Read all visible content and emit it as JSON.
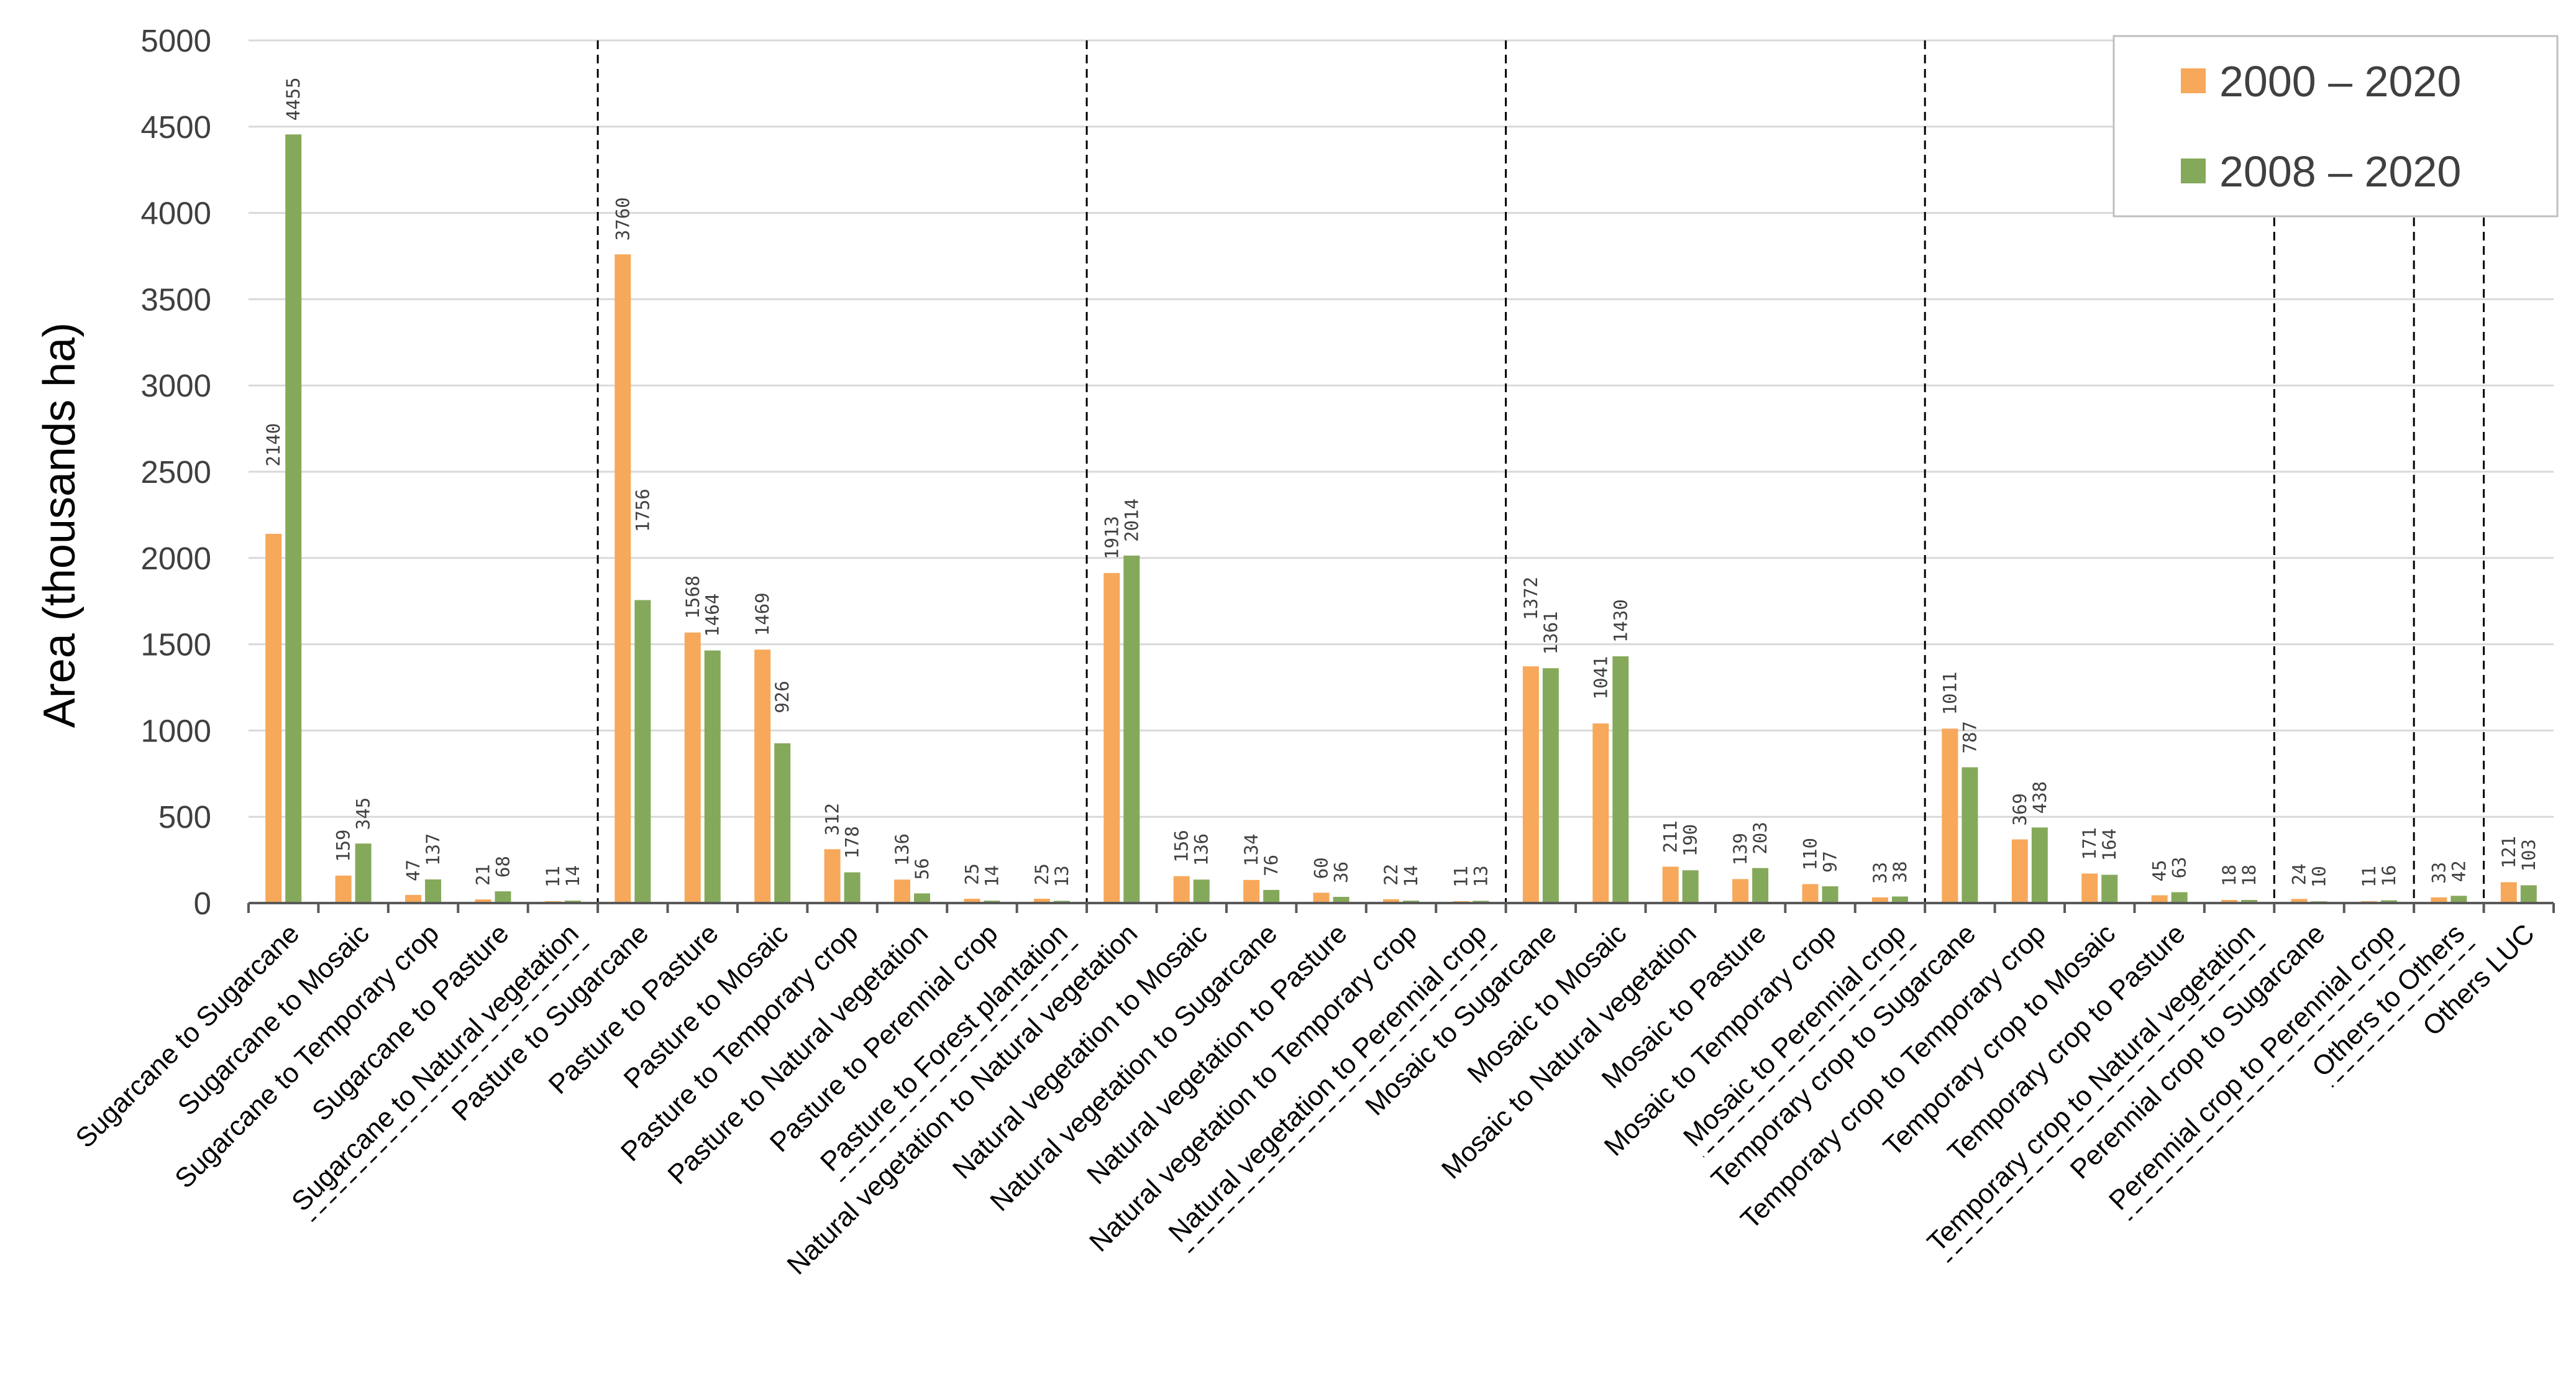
{
  "chart_data": {
    "type": "bar",
    "ylabel": "Area (thousands ha)",
    "xlabel": "",
    "ylim": [
      0,
      5000
    ],
    "yticks": [
      0,
      500,
      1000,
      1500,
      2000,
      2500,
      3000,
      3500,
      4000,
      4500,
      5000
    ],
    "grid": true,
    "legend_position": "top-right",
    "categories": [
      "Sugarcane to Sugarcane",
      "Sugarcane to Mosaic",
      "Sugarcane to Temporary crop",
      "Sugarcane to Pasture",
      "Sugarcane to Natural vegetation",
      "Pasture to Sugarcane",
      "Pasture to Pasture",
      "Pasture to Mosaic",
      "Pasture to Temporary crop",
      "Pasture to Natural vegetation",
      "Pasture to Perennial crop",
      "Pasture to Forest plantation",
      "Natural vegetation to Natural vegetation",
      "Natural vegetation to Mosaic",
      "Natural vegetation to Sugarcane",
      "Natural vegetation to Pasture",
      "Natural vegetation to Temporary crop",
      "Natural vegetation to Perennial crop",
      "Mosaic to Sugarcane",
      "Mosaic to Mosaic",
      "Mosaic to Natural vegetation",
      "Mosaic to Pasture",
      "Mosaic to Temporary crop",
      "Mosaic to Perennial crop",
      "Temporary crop to Sugarcane",
      "Temporary crop to Temporary crop",
      "Temporary crop to Mosaic",
      "Temporary crop to Pasture",
      "Temporary crop to Natural vegetation",
      "Perennial crop to Sugarcane",
      "Perennial crop to Perennial crop",
      "Others to Others",
      "Others LUC"
    ],
    "series": [
      {
        "name": "2000 – 2020",
        "color": "#F7A85A",
        "values": [
          2140,
          159,
          47,
          21,
          11,
          3760,
          1568,
          1469,
          312,
          136,
          25,
          25,
          1913,
          156,
          134,
          60,
          22,
          11,
          1372,
          1041,
          211,
          139,
          110,
          33,
          1011,
          369,
          171,
          45,
          18,
          24,
          11,
          33,
          121
        ]
      },
      {
        "name": "2008 – 2020",
        "color": "#85A95A",
        "values": [
          4455,
          345,
          137,
          68,
          14,
          1756,
          1464,
          926,
          178,
          56,
          14,
          13,
          2014,
          136,
          76,
          36,
          14,
          13,
          1361,
          1430,
          190,
          203,
          97,
          38,
          787,
          438,
          164,
          63,
          18,
          10,
          16,
          42,
          103
        ]
      }
    ],
    "group_separators_after": [
      4,
      11,
      17,
      23,
      28,
      30,
      31
    ],
    "dashed_underline_categories": [
      4,
      11,
      17,
      23,
      28,
      30,
      31
    ]
  }
}
